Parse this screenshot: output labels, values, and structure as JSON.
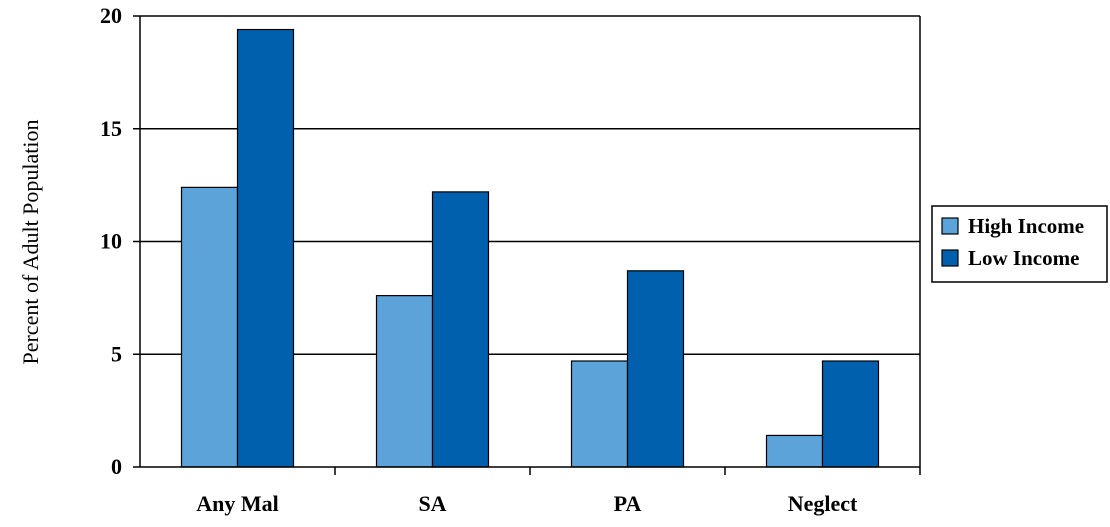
{
  "chart_data": {
    "type": "bar",
    "title": "",
    "xlabel": "",
    "ylabel": "Percent of Adult Population",
    "categories": [
      "Any Mal",
      "SA",
      "PA",
      "Neglect"
    ],
    "series": [
      {
        "name": "High Income",
        "values": [
          12.4,
          7.6,
          4.7,
          1.4
        ],
        "color": "#5ba3d9"
      },
      {
        "name": "Low Income",
        "values": [
          19.4,
          12.2,
          8.7,
          4.7
        ],
        "color": "#0060ad"
      }
    ],
    "ylim": [
      0,
      20
    ],
    "yticks": [
      0,
      5,
      10,
      15,
      20
    ],
    "grid": true,
    "legend": "right"
  }
}
